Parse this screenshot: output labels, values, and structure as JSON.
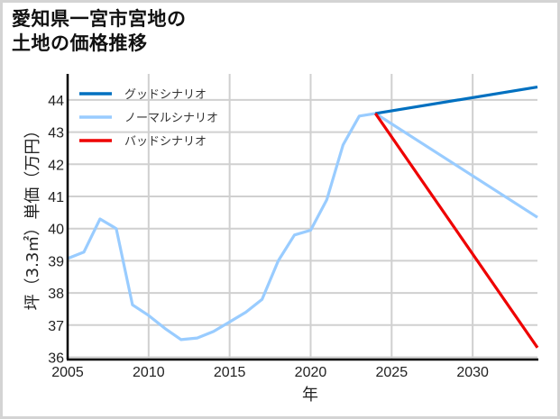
{
  "title_lines": [
    "愛知県一宮市宮地の",
    "土地の価格推移"
  ],
  "chart_data": {
    "type": "line",
    "title": "愛知県一宮市宮地の土地の価格推移",
    "xlabel": "年",
    "ylabel": "坪（3.3㎡）単価（万円）",
    "xlim": [
      2005,
      2034
    ],
    "ylim": [
      36,
      44.75
    ],
    "xticks": [
      2005,
      2010,
      2015,
      2020,
      2025,
      2030
    ],
    "yticks": [
      36,
      37,
      38,
      39,
      40,
      41,
      42,
      43,
      44
    ],
    "grid": true,
    "legend_position": "upper left",
    "series": [
      {
        "name": "グッドシナリオ",
        "color": "#0070c0",
        "x": [
          2024,
          2034
        ],
        "y": [
          43.58,
          44.4
        ]
      },
      {
        "name": "ノーマルシナリオ",
        "color": "#99ccff",
        "x": [
          2005,
          2006,
          2007,
          2008,
          2009,
          2010,
          2011,
          2012,
          2013,
          2014,
          2015,
          2016,
          2017,
          2018,
          2019,
          2020,
          2021,
          2022,
          2023,
          2024,
          2034
        ],
        "y": [
          39.07,
          39.27,
          40.3,
          40.0,
          37.63,
          37.3,
          36.9,
          36.55,
          36.6,
          36.8,
          37.1,
          37.4,
          37.8,
          39.0,
          39.8,
          39.95,
          40.9,
          42.6,
          43.5,
          43.58,
          40.35
        ]
      },
      {
        "name": "バッドシナリオ",
        "color": "#ee0000",
        "x": [
          2024,
          2034
        ],
        "y": [
          43.58,
          36.3
        ]
      }
    ]
  },
  "legend": [
    {
      "label": "グッドシナリオ",
      "color": "#0070c0"
    },
    {
      "label": "ノーマルシナリオ",
      "color": "#99ccff"
    },
    {
      "label": "バッドシナリオ",
      "color": "#ee0000"
    }
  ],
  "axis": {
    "xlabel": "年",
    "ylabel": "坪（3.3㎡）単価（万円）",
    "x_tick_labels": [
      "2005",
      "2010",
      "2015",
      "2020",
      "2025",
      "2030"
    ],
    "y_tick_labels": [
      "36",
      "37",
      "38",
      "39",
      "40",
      "41",
      "42",
      "43",
      "44"
    ]
  }
}
